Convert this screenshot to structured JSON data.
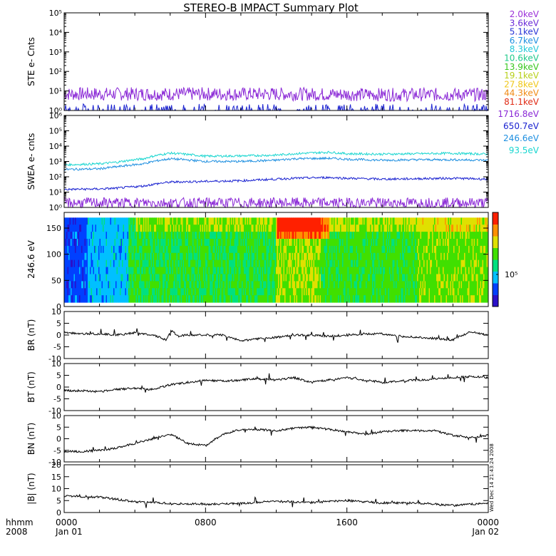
{
  "title": "STEREO-B IMPACT Summary Plot",
  "stamp": "Wed Dec 14 21:43:24 2008",
  "time_axis": {
    "row1_label": "hhmm",
    "row2_label": "2008",
    "ticks": [
      {
        "t": 0,
        "hhmm": "0000",
        "date": "Jan 01"
      },
      {
        "t": 8,
        "hhmm": "0800",
        "date": ""
      },
      {
        "t": 16,
        "hhmm": "1600",
        "date": ""
      },
      {
        "t": 24,
        "hhmm": "0000",
        "date": "Jan 02"
      }
    ],
    "range_hours": [
      0,
      24
    ]
  },
  "ste_legend": [
    {
      "label": "2.0keV",
      "color": "#9b30d9"
    },
    {
      "label": "3.6keV",
      "color": "#6a2bd8"
    },
    {
      "label": "5.1keV",
      "color": "#2a35d6"
    },
    {
      "label": "6.7keV",
      "color": "#1e90e0"
    },
    {
      "label": "8.3keV",
      "color": "#22c8d8"
    },
    {
      "label": "10.6keV",
      "color": "#1fc98a"
    },
    {
      "label": "13.9keV",
      "color": "#38c81e"
    },
    {
      "label": "19.1keV",
      "color": "#b8d01a"
    },
    {
      "label": "27.8keV",
      "color": "#f0c81a"
    },
    {
      "label": "44.3keV",
      "color": "#f08a14"
    },
    {
      "label": "81.1keV",
      "color": "#e02a14"
    }
  ],
  "swea_legend": [
    {
      "label": "1716.8eV",
      "color": "#8a28d6"
    },
    {
      "label": "650.7eV",
      "color": "#1a22d0"
    },
    {
      "label": "246.6eV",
      "color": "#1e8fe0"
    },
    {
      "label": "93.5eV",
      "color": "#1ad6d0"
    }
  ],
  "chart_data": [
    {
      "type": "line",
      "panel": "ste",
      "ylabel": "STE e- Cnts",
      "yscale": "log",
      "ylim": [
        1,
        100000
      ],
      "ytick_labels": [
        "10⁰",
        "10¹",
        "10²",
        "10³",
        "10⁴",
        "10⁵"
      ],
      "xlim": [
        0,
        24
      ],
      "series": [
        {
          "name": "2.0keV",
          "color": "#8a28d6",
          "x": [
            0,
            6,
            12,
            18,
            24
          ],
          "y": [
            7,
            7,
            7,
            6.5,
            6.5
          ]
        },
        {
          "name": "5.1keV",
          "color": "#1a22d0",
          "x": [
            0,
            24
          ],
          "y": [
            1,
            1
          ]
        }
      ]
    },
    {
      "type": "line",
      "panel": "swea",
      "ylabel": "SWEA e- cnts",
      "yscale": "log",
      "ylim": [
        1,
        1000000
      ],
      "ytick_labels": [
        "10⁰",
        "10¹",
        "10²",
        "10³",
        "10⁴",
        "10⁵",
        "10⁶"
      ],
      "xlim": [
        0,
        24
      ],
      "series": [
        {
          "name": "93.5eV",
          "color": "#1ad6d0",
          "x": [
            0,
            2,
            3,
            4.5,
            6,
            8,
            10,
            12,
            13,
            15,
            16,
            18,
            20,
            22,
            24
          ],
          "y": [
            600,
            700,
            900,
            1500,
            3500,
            2200,
            2300,
            2600,
            3200,
            4000,
            3200,
            3000,
            3200,
            3400,
            3000
          ]
        },
        {
          "name": "246.6eV",
          "color": "#1e8fe0",
          "x": [
            0,
            2,
            3,
            4.5,
            6,
            8,
            10,
            12,
            13,
            15,
            16,
            18,
            20,
            22,
            24
          ],
          "y": [
            300,
            330,
            450,
            700,
            1500,
            1000,
            1000,
            1200,
            1500,
            1600,
            1400,
            1200,
            1300,
            1300,
            1200
          ]
        },
        {
          "name": "650.7eV",
          "color": "#1a22d0",
          "x": [
            0,
            2,
            3,
            4.5,
            6,
            8,
            10,
            12,
            13,
            15,
            16,
            18,
            20,
            22,
            24
          ],
          "y": [
            15,
            16,
            18,
            25,
            45,
            50,
            55,
            70,
            80,
            90,
            80,
            70,
            75,
            80,
            70
          ]
        },
        {
          "name": "1716.8eV",
          "color": "#8a28d6",
          "x": [
            0,
            24
          ],
          "y": [
            2,
            2
          ]
        }
      ]
    },
    {
      "type": "heatmap",
      "panel": "pad",
      "ylabel": "246.6 eV",
      "ylim": [
        0,
        180
      ],
      "yticks": [
        0,
        50,
        100,
        150
      ],
      "colorbar_tick": "10⁵",
      "colorbar_colors": [
        "#2a10c8",
        "#0040ff",
        "#00c0ff",
        "#00e080",
        "#40e000",
        "#e0e000",
        "#ff9000",
        "#ff2000"
      ],
      "xlim": [
        0,
        24
      ]
    },
    {
      "type": "line",
      "panel": "br",
      "ylabel": "BR (nT)",
      "ylim": [
        -10,
        10
      ],
      "yticks": [
        -10,
        -5,
        0,
        5,
        10
      ],
      "xlim": [
        0,
        24
      ],
      "series": [
        {
          "x": [
            0,
            1,
            2,
            3,
            4,
            5,
            5.8,
            6.1,
            6.4,
            7,
            8,
            9,
            10,
            11,
            12,
            13,
            14,
            15,
            16,
            17,
            18,
            19,
            20,
            21,
            22,
            23,
            24
          ],
          "y": [
            1,
            0.5,
            0.5,
            0,
            1,
            0,
            -2,
            2.5,
            -0.5,
            0,
            0,
            0,
            -2.5,
            -1.5,
            -1,
            0,
            0,
            -0.5,
            0,
            0.5,
            0.5,
            -0.5,
            -1,
            -1.5,
            -2,
            1.5,
            0
          ]
        }
      ]
    },
    {
      "type": "line",
      "panel": "bt",
      "ylabel": "BT (nT)",
      "ylim": [
        -10,
        10
      ],
      "yticks": [
        -10,
        -5,
        0,
        5,
        10
      ],
      "xlim": [
        0,
        24
      ],
      "series": [
        {
          "x": [
            0,
            1,
            2,
            3,
            4,
            5,
            6,
            7,
            8,
            9,
            10,
            11,
            12,
            13,
            14,
            15,
            16,
            17,
            18,
            19,
            20,
            21,
            22,
            23,
            24
          ],
          "y": [
            -1.5,
            -1.5,
            -2,
            -1,
            -0.5,
            -1,
            1,
            2,
            3,
            2.5,
            3,
            3.5,
            3,
            4,
            2,
            3,
            4,
            3,
            2,
            2.5,
            3,
            3.5,
            4,
            4.5,
            4
          ]
        }
      ]
    },
    {
      "type": "line",
      "panel": "bn",
      "ylabel": "BN (nT)",
      "ylim": [
        -10,
        10
      ],
      "yticks": [
        -10,
        -5,
        0,
        5,
        10
      ],
      "xlim": [
        0,
        24
      ],
      "series": [
        {
          "x": [
            0,
            1,
            2,
            3,
            4,
            5,
            6,
            7,
            8,
            9,
            10,
            11,
            12,
            13,
            14,
            15,
            16,
            17,
            18,
            19,
            20,
            21,
            22,
            23,
            24
          ],
          "y": [
            -5.5,
            -5.5,
            -5,
            -4,
            -2,
            0,
            2,
            -2,
            -3,
            2,
            4,
            4,
            3.5,
            4.5,
            5,
            4,
            3,
            2,
            3,
            3.5,
            3.5,
            3.5,
            1.5,
            0.5,
            1.5
          ]
        }
      ]
    },
    {
      "type": "line",
      "panel": "bmag",
      "ylabel": "|B| (nT)",
      "ylim": [
        0,
        20
      ],
      "yticks": [
        0,
        5,
        10,
        15,
        20
      ],
      "xlim": [
        0,
        24
      ],
      "series": [
        {
          "x": [
            0,
            2,
            4,
            6,
            8,
            10,
            12,
            14,
            16,
            18,
            20,
            22,
            24
          ],
          "y": [
            7,
            6.5,
            4.5,
            3.8,
            3.5,
            3.8,
            4.8,
            4.2,
            5,
            4,
            4,
            3,
            4
          ]
        }
      ]
    }
  ]
}
